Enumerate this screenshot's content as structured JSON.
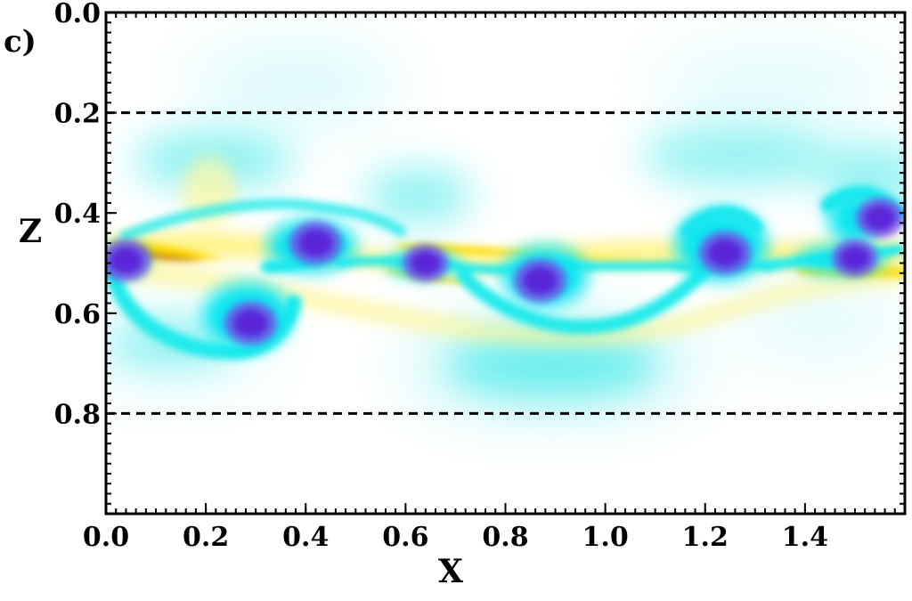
{
  "chart_data": {
    "type": "heatmap",
    "panel_label": "c)",
    "xlabel": "X",
    "ylabel": "Z",
    "xlim": [
      0.0,
      1.6
    ],
    "ylim": [
      0.0,
      1.0
    ],
    "y_inverted": true,
    "x_ticks": [
      "0.0",
      "0.2",
      "0.4",
      "0.6",
      "0.8",
      "1.0",
      "1.2",
      "1.4"
    ],
    "x_tick_values": [
      0.0,
      0.2,
      0.4,
      0.6,
      0.8,
      1.0,
      1.2,
      1.4
    ],
    "y_ticks": [
      "0.0",
      "0.2",
      "0.4",
      "0.6",
      "0.8"
    ],
    "y_tick_values": [
      0.0,
      0.2,
      0.4,
      0.6,
      0.8
    ],
    "reference_lines_z": [
      0.2,
      0.8
    ],
    "colormap": {
      "negative_strong": "#5a20d8",
      "negative": "#00f0f0",
      "zero": "#ffffff",
      "positive": "#ffe800",
      "positive_strong": "#a05000"
    },
    "features": [
      {
        "kind": "vortex",
        "x": 0.04,
        "z": 0.495,
        "sign": "negative",
        "strength": 0.9
      },
      {
        "kind": "vortex",
        "x": 0.29,
        "z": 0.62,
        "sign": "negative",
        "strength": 1.0
      },
      {
        "kind": "vortex",
        "x": 0.42,
        "z": 0.46,
        "sign": "negative",
        "strength": 1.0
      },
      {
        "kind": "vortex",
        "x": 0.64,
        "z": 0.5,
        "sign": "negative",
        "strength": 0.7
      },
      {
        "kind": "vortex",
        "x": 0.87,
        "z": 0.535,
        "sign": "negative",
        "strength": 1.0
      },
      {
        "kind": "vortex",
        "x": 1.24,
        "z": 0.48,
        "sign": "negative",
        "strength": 1.0
      },
      {
        "kind": "vortex",
        "x": 1.5,
        "z": 0.49,
        "sign": "negative",
        "strength": 0.7
      },
      {
        "kind": "vortex",
        "x": 1.55,
        "z": 0.41,
        "sign": "negative",
        "strength": 0.8
      }
    ]
  }
}
